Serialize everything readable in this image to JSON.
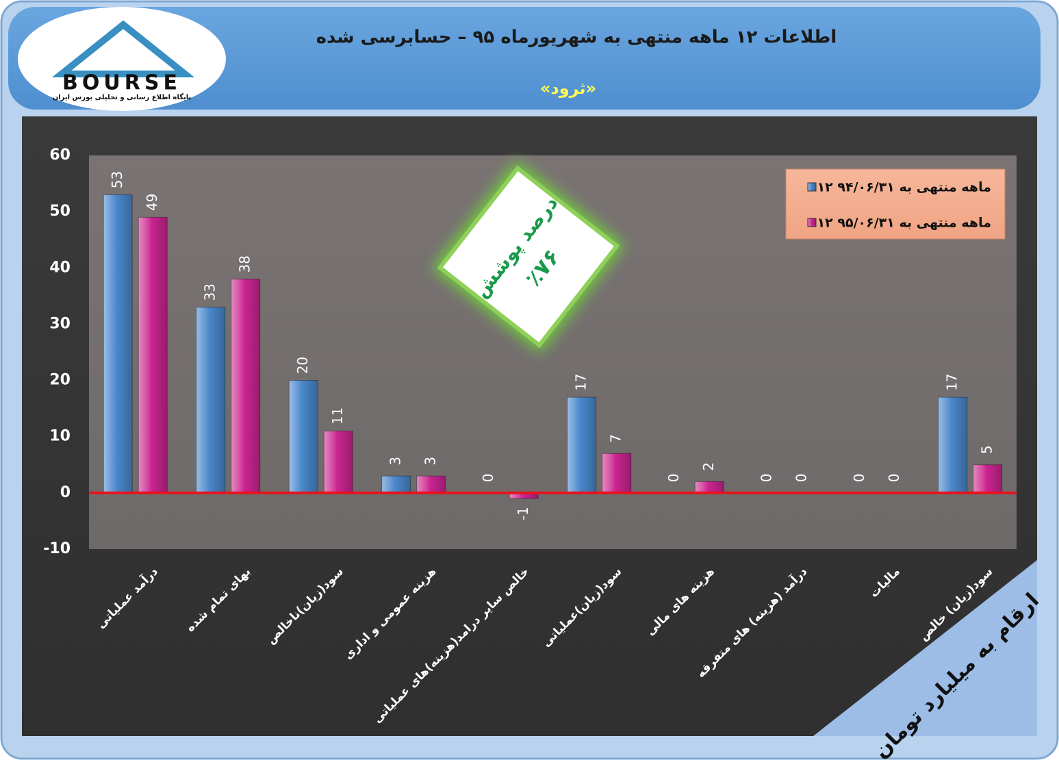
{
  "chart_data": {
    "type": "bar",
    "title": "اطلاعات ۱۲  ماهه منتهی به شهریورماه ۹۵ – حسابرسی شده",
    "subtitle": "«ثرود»",
    "logo_text": "BOURSE",
    "logo_caption": "پایگاه اطلاع رسانی و تحلیلی بورس ایران",
    "badge_title": "درصد پوشش",
    "badge_value": "٪۷۶",
    "unit_note": "ارقام به میلیارد تومان",
    "categories": [
      "درآمد عملیاتی",
      "بهای تمام شده",
      "سود(زیان)ناخالص",
      "هزینه عمومی و اداری",
      "خالص سایر درامد(هزینه)های عملیاتی",
      "سود(زیان)عملیاتی",
      "هزینه های مالی",
      "درآمد (هزینه) های متفرقه",
      "مالیات",
      "سود(زیان) خالص"
    ],
    "series": [
      {
        "name": "۱۲ ماهه منتهی به ۹۴/۰۶/۳۱",
        "color": "#4a88cc",
        "values": [
          53,
          33,
          20,
          3,
          0,
          17,
          0,
          0,
          0,
          17
        ]
      },
      {
        "name": "۱۲ ماهه منتهی به ۹۵/۰۶/۳۱",
        "color": "#cc2592",
        "values": [
          49,
          38,
          11,
          3,
          -1,
          7,
          2,
          0,
          0,
          5
        ]
      }
    ],
    "ylim": [
      -10,
      60
    ],
    "yticks": [
      -10,
      0,
      10,
      20,
      30,
      40,
      50,
      60
    ],
    "grid": false,
    "legend": "top-right"
  }
}
